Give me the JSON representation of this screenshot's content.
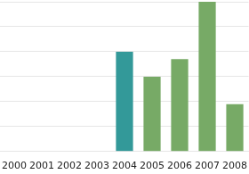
{
  "chart_data": {
    "type": "bar",
    "categories": [
      "2000",
      "2001",
      "2002",
      "2003",
      "2004",
      "2005",
      "2006",
      "2007",
      "2008"
    ],
    "values": [
      null,
      null,
      null,
      null,
      4,
      3,
      3.7,
      6,
      1.9
    ],
    "colors": [
      "#77aa66",
      "#77aa66",
      "#77aa66",
      "#77aa66",
      "#339999",
      "#77aa66",
      "#77aa66",
      "#77aa66",
      "#77aa66"
    ],
    "ylim": [
      0,
      6
    ],
    "yticks": [
      0,
      1,
      2,
      3,
      4,
      5,
      6
    ],
    "grid": true,
    "tick_labels": "x"
  }
}
